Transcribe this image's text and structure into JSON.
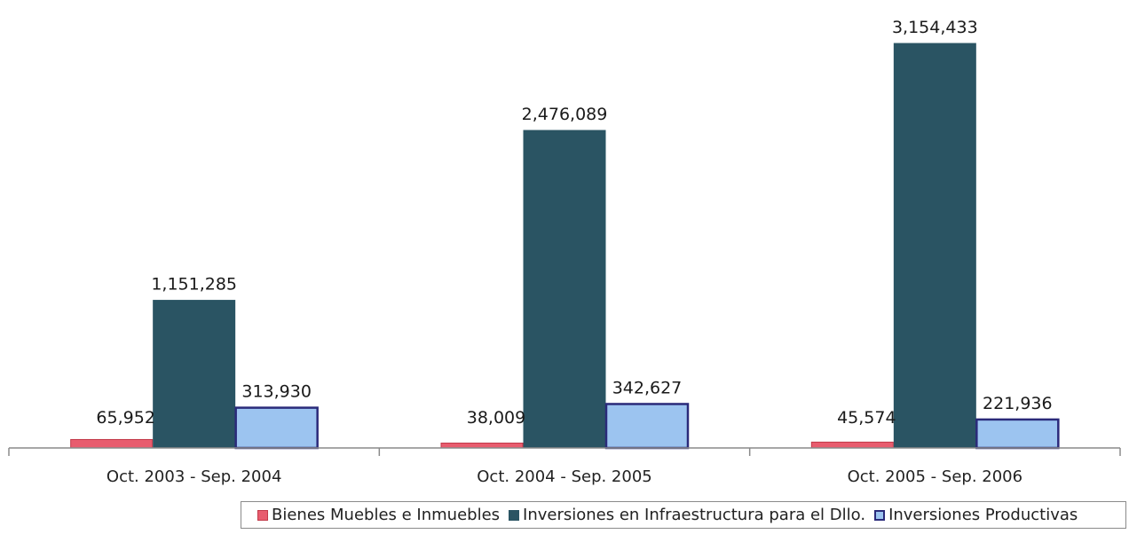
{
  "chart_data": {
    "type": "bar",
    "categories": [
      "Oct. 2003 - Sep. 2004",
      "Oct. 2004 - Sep. 2005",
      "Oct. 2005 - Sep. 2006"
    ],
    "series": [
      {
        "name": "Bienes Muebles e Inmuebles",
        "values": [
          65952,
          38009,
          45574
        ],
        "labels": [
          "65,952",
          "38,009",
          "45,574"
        ],
        "color": "#e85c6e",
        "border": "#c23a4a"
      },
      {
        "name": "Inversiones en Infraestructura para el Dllo.",
        "values": [
          1151285,
          2476089,
          3154433
        ],
        "labels": [
          "1,151,285",
          "2,476,089",
          "3,154,433"
        ],
        "color": "#2a5463",
        "border": "#2a5463"
      },
      {
        "name": "Inversiones Productivas",
        "values": [
          313930,
          342627,
          221936
        ],
        "labels": [
          "313,930",
          "342,627",
          "221,936"
        ],
        "color": "#9cc4f0",
        "border": "#2a2a7a"
      }
    ],
    "ylim": [
      0,
      3154433
    ],
    "legend_position": "bottom-right",
    "grid": false
  }
}
